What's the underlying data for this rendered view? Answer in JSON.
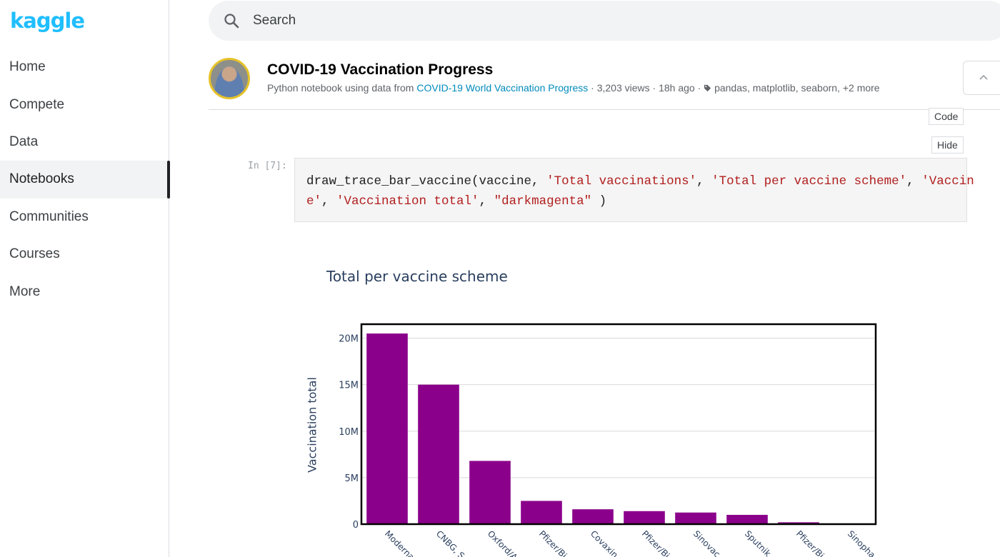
{
  "brand": {
    "logo_text": "kaggle"
  },
  "sidebar": {
    "items": [
      {
        "label": "Home"
      },
      {
        "label": "Compete"
      },
      {
        "label": "Data"
      },
      {
        "label": "Notebooks",
        "active": true
      },
      {
        "label": "Communities"
      },
      {
        "label": "Courses"
      },
      {
        "label": "More"
      }
    ]
  },
  "search": {
    "placeholder": "Search"
  },
  "notebook": {
    "title": "COVID-19 Vaccination Progress",
    "meta_prefix": "Python notebook using data from",
    "dataset_link": "COVID-19 World Vaccination Progress",
    "views": "· 3,203 views ·",
    "age": "18h ago ·",
    "tags": "pandas, matplotlib, seaborn, +2 more"
  },
  "buttons": {
    "code": "Code",
    "hide": "Hide"
  },
  "cell": {
    "prompt": "In [7]:",
    "code_line1_fn": "draw_trace_bar_vaccine(vaccine, ",
    "code_line1_s1": "'Total vaccinations'",
    "code_sep": ", ",
    "code_line1_s2": "'Total per vaccine scheme'",
    "code_line1_s3": "'Vaccin",
    "code_line2_s3": "e'",
    "code_line2_s4": "'Vaccination total'",
    "code_line2_s5": "\"darkmagenta\"",
    "code_line2_end": " )"
  },
  "colors": {
    "bar": "#8b008b",
    "accent": "#20beff",
    "link": "#008abc"
  },
  "chart_data": {
    "type": "bar",
    "title": "Total per vaccine scheme",
    "ylabel": "Vaccination total",
    "xlabel": "",
    "categories": [
      "Moderna",
      "CNBG, S",
      "Oxford/A",
      "Pfizer/Bi",
      "Covaxin",
      "Pfizer/Bi",
      "Sinovac",
      "Sputnik",
      "Pfizer/Bi",
      "Sinopha"
    ],
    "values": [
      20500000,
      15000000,
      6800000,
      2500000,
      1600000,
      1400000,
      1250000,
      1000000,
      200000,
      20000
    ],
    "ylim": [
      0,
      21500000
    ],
    "yticks": [
      0,
      5000000,
      10000000,
      15000000,
      20000000
    ],
    "ytick_labels": [
      "0",
      "5M",
      "10M",
      "15M",
      "20M"
    ],
    "grid": true
  }
}
